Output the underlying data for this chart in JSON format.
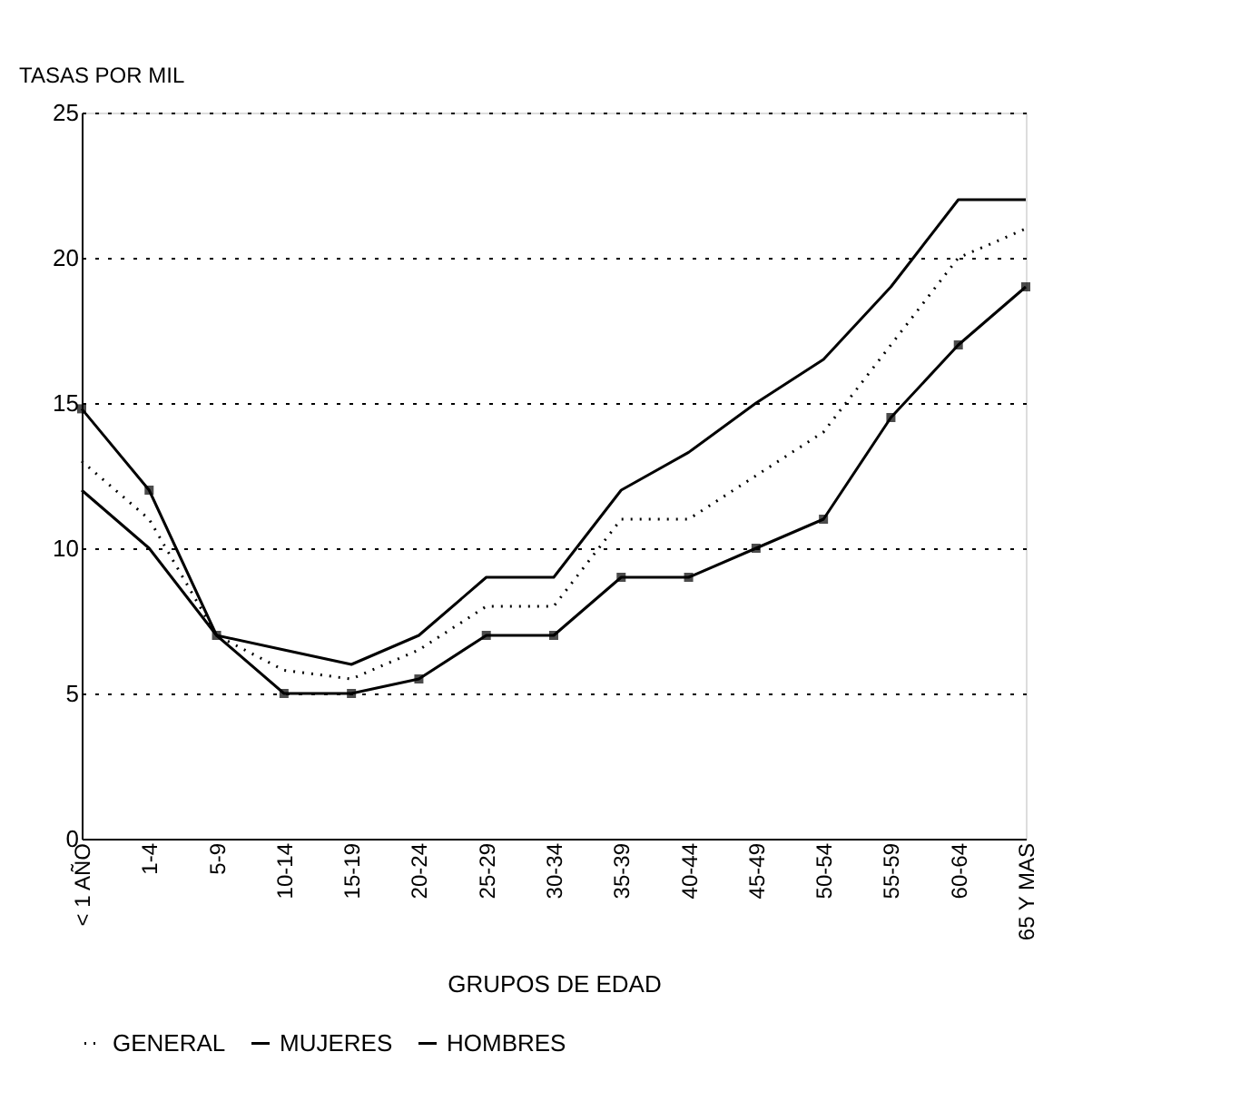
{
  "chart_data": {
    "type": "line",
    "xlabel": "GRUPOS DE EDAD",
    "ylabel": "TASAS POR MIL",
    "categories": [
      "< 1 AÑO",
      "1-4",
      "5-9",
      "10-14",
      "15-19",
      "20-24",
      "25-29",
      "30-34",
      "35-39",
      "40-44",
      "45-49",
      "50-54",
      "55-59",
      "60-64",
      "65 Y MAS"
    ],
    "series": [
      {
        "name": "GENERAL",
        "color": "#000000",
        "line_style": "dotted",
        "marker": "none",
        "values": [
          13,
          11,
          7,
          5.8,
          5.5,
          6.5,
          8,
          8,
          11,
          11,
          12.5,
          14,
          17,
          20,
          21
        ]
      },
      {
        "name": "MUJERES",
        "color": "#000000",
        "line_style": "solid",
        "marker": "none",
        "values": [
          12,
          10,
          7,
          6.5,
          6,
          7,
          9,
          9,
          12,
          13.3,
          15,
          16.5,
          19,
          22,
          22
        ]
      },
      {
        "name": "HOMBRES",
        "color": "#000000",
        "line_style": "solid",
        "marker": "square",
        "values": [
          14.8,
          12,
          7,
          5,
          5,
          5.5,
          7,
          7,
          9,
          9,
          10,
          11,
          14.5,
          17,
          19
        ]
      }
    ],
    "ylim": [
      0,
      25
    ],
    "yticks": [
      0,
      5,
      10,
      15,
      20,
      25
    ],
    "grid": "y",
    "legend": "bottom"
  }
}
